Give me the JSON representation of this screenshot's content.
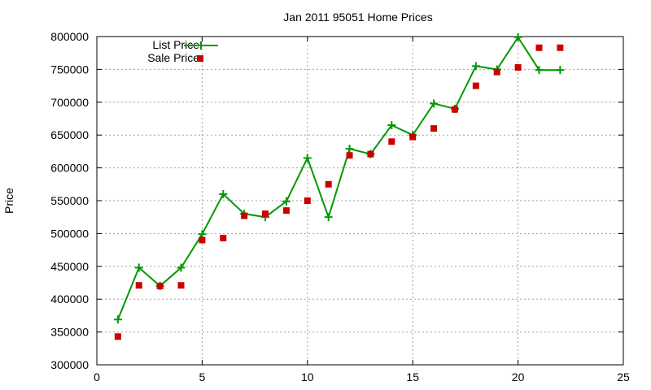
{
  "chart_data": {
    "type": "line",
    "title": "Jan 2011 95051 Home Prices",
    "xlabel": "",
    "ylabel": "Price",
    "xlim": [
      0,
      25
    ],
    "ylim": [
      300000,
      800000
    ],
    "x_ticks": [
      "0",
      "5",
      "10",
      "15",
      "20",
      "25"
    ],
    "y_ticks": [
      "300000",
      "350000",
      "400000",
      "450000",
      "500000",
      "550000",
      "600000",
      "650000",
      "700000",
      "750000",
      "800000"
    ],
    "grid": true,
    "legend_position": "top-left",
    "series": [
      {
        "name": "List Price",
        "style": "linespoints",
        "marker": "plus",
        "color": "#009900",
        "x": [
          1,
          2,
          3,
          4,
          5,
          6,
          7,
          8,
          9,
          10,
          11,
          12,
          13,
          14,
          15,
          16,
          17,
          18,
          19,
          20,
          21,
          22
        ],
        "values": [
          369000,
          448000,
          420000,
          448000,
          499000,
          560000,
          530000,
          525000,
          549000,
          615000,
          525000,
          629000,
          621000,
          665000,
          650000,
          698000,
          690000,
          755000,
          750000,
          799000,
          749000,
          749000
        ]
      },
      {
        "name": "Sale Price",
        "style": "points",
        "marker": "square",
        "color": "#cc0000",
        "x": [
          1,
          2,
          3,
          4,
          5,
          6,
          7,
          8,
          9,
          10,
          11,
          12,
          13,
          14,
          15,
          16,
          17,
          18,
          19,
          20,
          21,
          22
        ],
        "values": [
          343000,
          421000,
          420000,
          421000,
          490000,
          493000,
          527000,
          530000,
          535000,
          550000,
          575000,
          619000,
          621000,
          640000,
          647000,
          660000,
          689000,
          725000,
          746000,
          753000,
          783000,
          783000
        ]
      }
    ]
  }
}
